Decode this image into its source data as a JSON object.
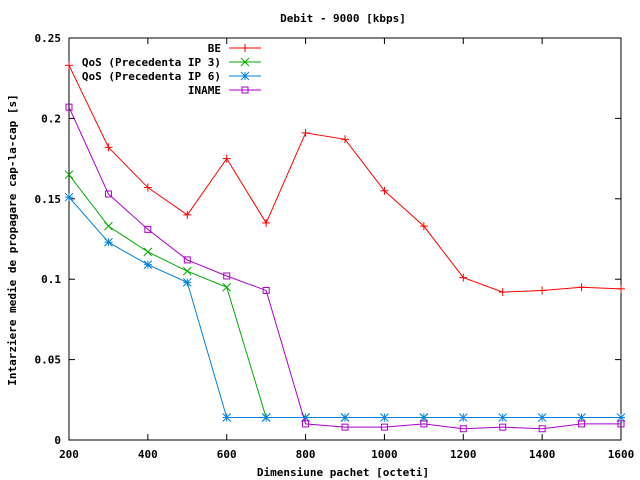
{
  "chart_data": {
    "type": "line",
    "title": "Debit - 9000 [kbps]",
    "xlabel": "Dimensiune pachet [octeti]",
    "ylabel": "Intarziere medie de propagare cap-la-cap [s]",
    "xlim": [
      200,
      1600
    ],
    "ylim": [
      0,
      0.25
    ],
    "xticks": [
      200,
      400,
      600,
      800,
      1000,
      1200,
      1400,
      1600
    ],
    "yticks": [
      "0",
      "0.05",
      "0.1",
      "0.15",
      "0.2",
      "0.25"
    ],
    "grid": false,
    "legend_position": "top-right",
    "series": [
      {
        "name": "BE",
        "color": "#ff0000",
        "marker": "plus",
        "points": [
          [
            200,
            0.233
          ],
          [
            300,
            0.182
          ],
          [
            400,
            0.157
          ],
          [
            500,
            0.14
          ],
          [
            600,
            0.175
          ],
          [
            700,
            0.135
          ],
          [
            800,
            0.191
          ],
          [
            900,
            0.187
          ],
          [
            1000,
            0.155
          ],
          [
            1100,
            0.133
          ],
          [
            1200,
            0.101
          ],
          [
            1300,
            0.092
          ],
          [
            1400,
            0.093
          ],
          [
            1500,
            0.095
          ],
          [
            1600,
            0.094
          ]
        ]
      },
      {
        "name": "QoS (Precedenta IP 3)",
        "color": "#00aa00",
        "marker": "cross",
        "points": [
          [
            200,
            0.165
          ],
          [
            300,
            0.133
          ],
          [
            400,
            0.117
          ],
          [
            500,
            0.105
          ],
          [
            600,
            0.095
          ],
          [
            700,
            0.014
          ],
          [
            800,
            0.014
          ],
          [
            900,
            0.014
          ],
          [
            1000,
            null
          ],
          [
            1100,
            0.014
          ]
        ]
      },
      {
        "name": "QoS (Precedenta IP 6)",
        "color": "#0080e0",
        "marker": "star",
        "points": [
          [
            200,
            0.151
          ],
          [
            300,
            0.123
          ],
          [
            400,
            0.109
          ],
          [
            500,
            0.098
          ],
          [
            600,
            0.014
          ],
          [
            700,
            0.014
          ],
          [
            800,
            0.014
          ],
          [
            900,
            0.014
          ],
          [
            1000,
            0.014
          ],
          [
            1100,
            0.014
          ],
          [
            1200,
            0.014
          ],
          [
            1300,
            0.014
          ],
          [
            1400,
            0.014
          ],
          [
            1500,
            0.014
          ],
          [
            1600,
            0.014
          ]
        ]
      },
      {
        "name": "INAME",
        "color": "#aa00cc",
        "marker": "square",
        "points": [
          [
            200,
            0.207
          ],
          [
            300,
            0.153
          ],
          [
            400,
            0.131
          ],
          [
            500,
            0.112
          ],
          [
            600,
            0.102
          ],
          [
            700,
            0.093
          ],
          [
            800,
            0.01
          ],
          [
            900,
            0.008
          ],
          [
            1000,
            0.008
          ],
          [
            1100,
            0.01
          ],
          [
            1200,
            0.007
          ],
          [
            1300,
            0.008
          ],
          [
            1400,
            0.007
          ],
          [
            1500,
            0.01
          ],
          [
            1600,
            0.01
          ]
        ]
      }
    ]
  }
}
